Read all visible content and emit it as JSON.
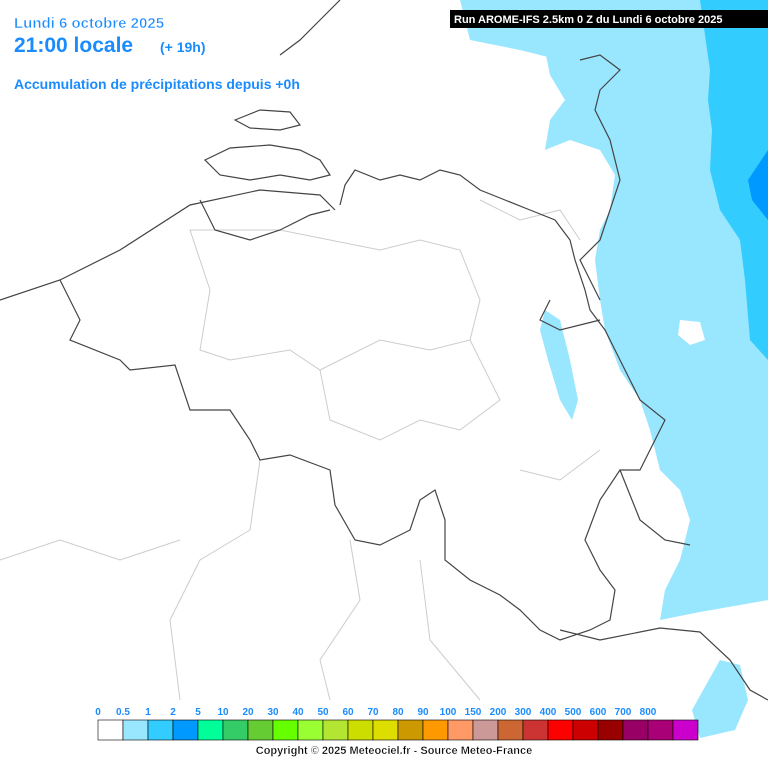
{
  "header": {
    "date": "Lundi 6 octobre 2025",
    "time": "21:00 locale",
    "offset": "(+ 19h)",
    "subtitle": "Accumulation de précipitations depuis +0h",
    "run": "Run AROME-IFS 2.5km 0 Z du Lundi 6 octobre 2025"
  },
  "legend": {
    "labels": [
      "0",
      "0.5",
      "1",
      "2",
      "5",
      "10",
      "20",
      "30",
      "40",
      "50",
      "60",
      "70",
      "80",
      "90",
      "100",
      "150",
      "200",
      "300",
      "400",
      "500",
      "600",
      "700",
      "800"
    ],
    "colors": [
      "#ffffff",
      "#99e6ff",
      "#33ccff",
      "#0099ff",
      "#00ff99",
      "#33cc66",
      "#66cc33",
      "#66ff00",
      "#99ff33",
      "#b3e633",
      "#ccdd00",
      "#dddd00",
      "#cc9900",
      "#ff9900",
      "#ff9966",
      "#cc9999",
      "#cc6633",
      "#cc3333",
      "#ff0000",
      "#cc0000",
      "#990000",
      "#990066",
      "#aa0077",
      "#cc00cc"
    ]
  },
  "footer": {
    "copyright": "Copyright © 2025 Meteociel.fr - Source Meteo-France"
  }
}
